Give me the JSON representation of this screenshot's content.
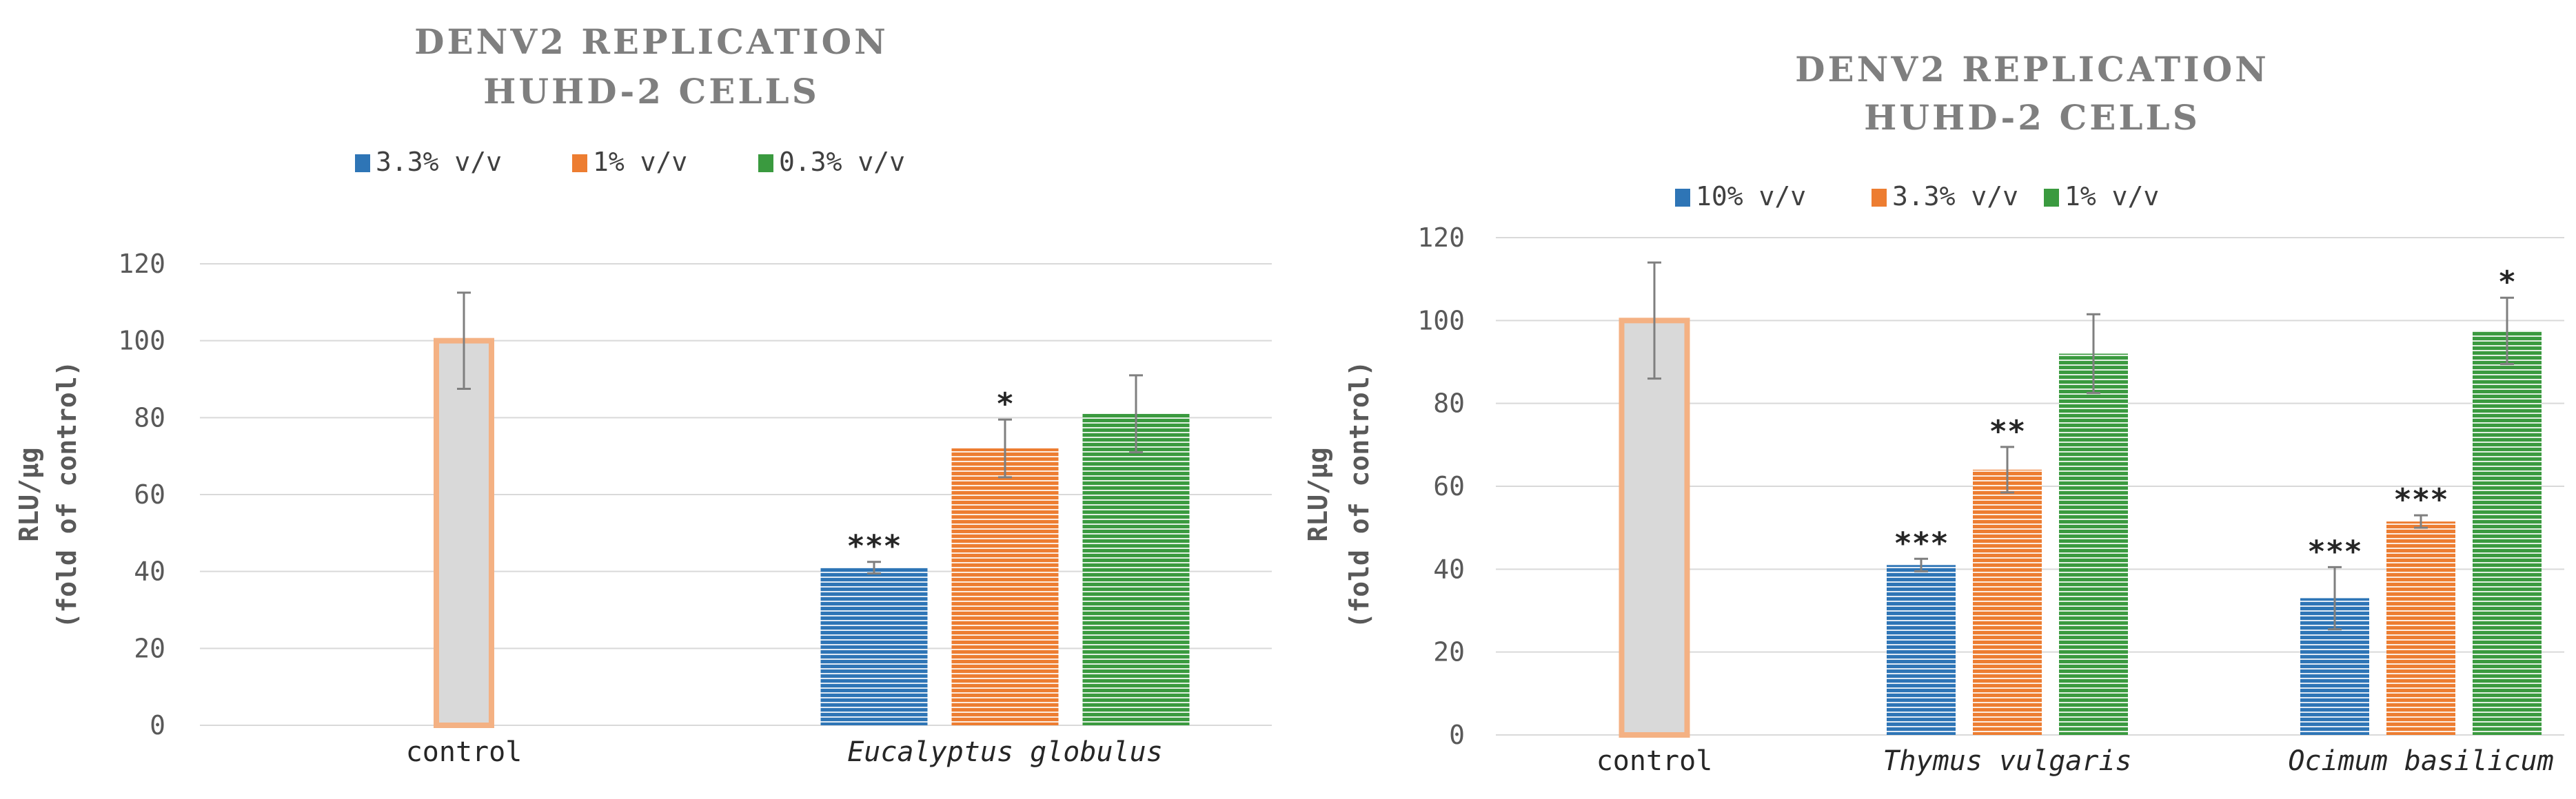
{
  "colors": {
    "series_blue": "#2e75b6",
    "series_orange": "#ed7d31",
    "series_green": "#3a9a3f",
    "control_fill": "#d9d9d9",
    "control_border": "#f4b183",
    "grid": "#d9d9d9",
    "title": "#7f7f7f"
  },
  "chart_data": [
    {
      "type": "bar",
      "title": [
        "DENV2 REPLICATION",
        "HUHD-2 CELLS"
      ],
      "ylabel": [
        "RLU/μg",
        "(fold of control)"
      ],
      "xlabel": "",
      "ylim": [
        0,
        120
      ],
      "yticks": [
        "0",
        "20",
        "40",
        "60",
        "80",
        "100",
        "120"
      ],
      "grid": true,
      "legend_position": "top",
      "legend": [
        "3.3% v/v",
        "1% v/v",
        "0.3% v/v"
      ],
      "control": {
        "label": "control",
        "value": 100,
        "error": 12.5
      },
      "groups": [
        {
          "label": "Eucalyptus globulus",
          "italic": true,
          "bars": [
            {
              "series": "3.3% v/v",
              "value": 41,
              "error": 1.5,
              "sig": "***"
            },
            {
              "series": "1% v/v",
              "value": 72,
              "error": 7.5,
              "sig": "*"
            },
            {
              "series": "0.3% v/v",
              "value": 81,
              "error": 10,
              "sig": ""
            }
          ]
        }
      ]
    },
    {
      "type": "bar",
      "title": [
        "DENV2 REPLICATION",
        "HUHD-2 CELLS"
      ],
      "ylabel": [
        "RLU/μg",
        "(fold of control)"
      ],
      "xlabel": "",
      "ylim": [
        0,
        120
      ],
      "yticks": [
        "0",
        "20",
        "40",
        "60",
        "80",
        "100",
        "120"
      ],
      "grid": true,
      "legend_position": "top",
      "legend": [
        "10% v/v",
        "3.3% v/v",
        "1% v/v"
      ],
      "control": {
        "label": "control",
        "value": 100,
        "error": 14
      },
      "groups": [
        {
          "label": "Thymus vulgaris",
          "italic": true,
          "bars": [
            {
              "series": "10% v/v",
              "value": 41,
              "error": 1.5,
              "sig": "***"
            },
            {
              "series": "3.3% v/v",
              "value": 64,
              "error": 5.5,
              "sig": "**"
            },
            {
              "series": "1% v/v",
              "value": 92,
              "error": 9.5,
              "sig": ""
            }
          ]
        },
        {
          "label": "Ocimum basilicum",
          "italic": true,
          "bars": [
            {
              "series": "10% v/v",
              "value": 33,
              "error": 7.5,
              "sig": "***"
            },
            {
              "series": "3.3% v/v",
              "value": 51.5,
              "error": 1.5,
              "sig": "***"
            },
            {
              "series": "1% v/v",
              "value": 97.5,
              "error": 8,
              "sig": "*"
            }
          ]
        }
      ]
    }
  ]
}
